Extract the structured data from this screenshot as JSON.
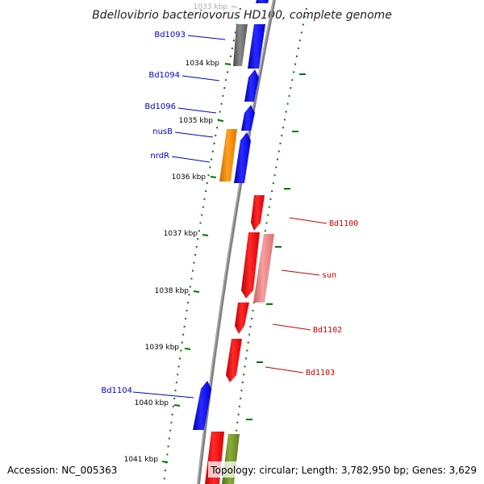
{
  "title": "Bdellovibrio bacteriovorus HD100, complete genome",
  "accession": "Accession: NC_005363",
  "topology": "Topology: circular; Length: 3,782,950 bp; Genes: 3,629",
  "ticks": [
    {
      "label": "1033 kbp",
      "faded": true
    },
    {
      "label": "1034 kbp"
    },
    {
      "label": "1035 kbp"
    },
    {
      "label": "1036 kbp"
    },
    {
      "label": "1037 kbp"
    },
    {
      "label": "1038 kbp"
    },
    {
      "label": "1039 kbp"
    },
    {
      "label": "1040 kbp"
    },
    {
      "label": "1041 kbp"
    }
  ],
  "genes_left": [
    {
      "label": "Bd1093",
      "color": "#0000cc"
    },
    {
      "label": "Bd1094",
      "color": "#0000cc"
    },
    {
      "label": "Bd1096",
      "color": "#0000cc"
    },
    {
      "label": "nusB",
      "color": "#0000cc"
    },
    {
      "label": "nrdR",
      "color": "#0000cc"
    },
    {
      "label": "Bd1104",
      "color": "#0000cc"
    }
  ],
  "genes_right": [
    {
      "label": "Bd1100",
      "color": "#cc0000"
    },
    {
      "label": "sun",
      "color": "#cc0000"
    },
    {
      "label": "Bd1102",
      "color": "#cc0000"
    },
    {
      "label": "Bd1103",
      "color": "#cc0000"
    }
  ],
  "colors": {
    "forward": "#0000ff",
    "reverse": "#ff0000",
    "reverse_light": "#f08080",
    "gray": "#6e6e6e",
    "orange": "#ff8c00",
    "olive": "#6b8e23",
    "tick": "#007700",
    "backbone": "#808080"
  }
}
